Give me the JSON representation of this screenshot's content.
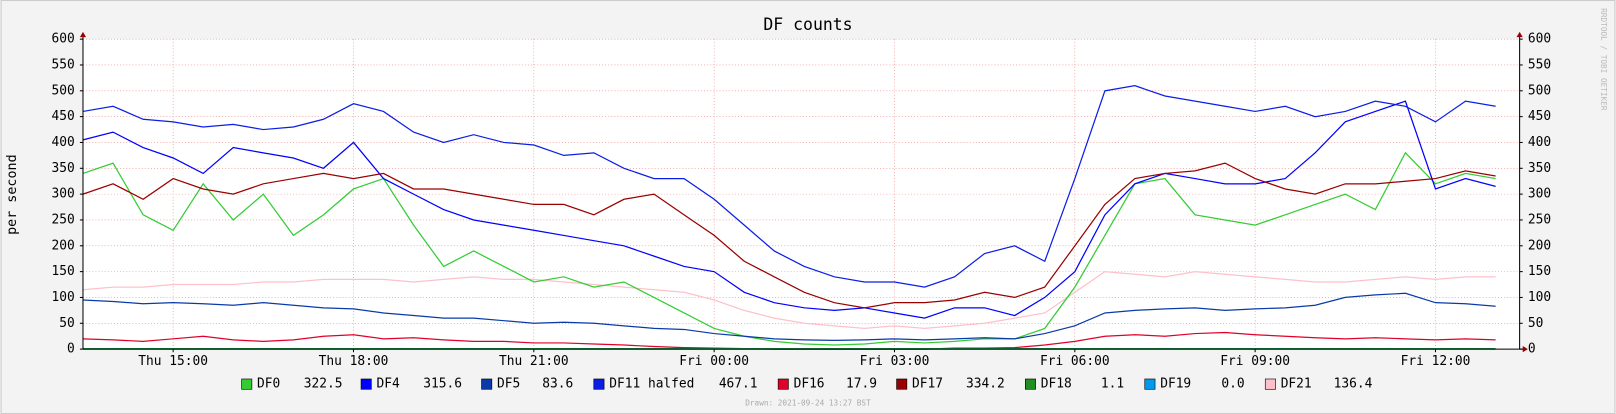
{
  "chart_data": {
    "type": "line",
    "title": "DF counts",
    "y_label": "per second",
    "side_note": "RRDTOOL / TOBI OETIKER",
    "footer": "Drawn: 2021-09-24 13:27 BST",
    "grid": true,
    "legend": "bottom",
    "x": [
      13.5,
      14,
      14.5,
      15,
      15.5,
      16,
      16.5,
      17,
      17.5,
      18,
      18.5,
      19,
      19.5,
      20,
      20.5,
      21,
      21.5,
      22,
      22.5,
      23,
      23.5,
      24,
      24.5,
      25,
      25.5,
      26,
      26.5,
      27,
      27.5,
      28,
      28.5,
      29,
      29.5,
      30,
      30.5,
      31,
      31.5,
      32,
      32.5,
      33,
      33.5,
      34,
      34.5,
      35,
      35.5,
      36,
      36.5,
      37
    ],
    "xlim": [
      13.5,
      37.4
    ],
    "xticks": [
      {
        "value": 15,
        "label": "Thu 15:00"
      },
      {
        "value": 18,
        "label": "Thu 18:00"
      },
      {
        "value": 21,
        "label": "Thu 21:00"
      },
      {
        "value": 24,
        "label": "Fri 00:00"
      },
      {
        "value": 27,
        "label": "Fri 03:00"
      },
      {
        "value": 30,
        "label": "Fri 06:00"
      },
      {
        "value": 33,
        "label": "Fri 09:00"
      },
      {
        "value": 36,
        "label": "Fri 12:00"
      }
    ],
    "ylim": [
      0,
      600
    ],
    "yticks": [
      0,
      50,
      100,
      150,
      200,
      250,
      300,
      350,
      400,
      450,
      500,
      550,
      600
    ],
    "series": [
      {
        "name": "DF0",
        "color": "#33cc33",
        "current": 322.5,
        "values": [
          340,
          360,
          260,
          230,
          320,
          250,
          300,
          220,
          260,
          310,
          330,
          240,
          160,
          190,
          160,
          130,
          140,
          120,
          130,
          100,
          70,
          40,
          25,
          15,
          10,
          8,
          10,
          15,
          12,
          15,
          20,
          20,
          40,
          120,
          220,
          320,
          330,
          260,
          250,
          240,
          260,
          280,
          300,
          270,
          380,
          320,
          340,
          330
        ]
      },
      {
        "name": "DF4",
        "color": "#0000ff",
        "current": 315.6,
        "values": [
          405,
          420,
          390,
          370,
          340,
          390,
          380,
          370,
          350,
          400,
          330,
          300,
          270,
          250,
          240,
          230,
          220,
          210,
          200,
          180,
          160,
          150,
          110,
          90,
          80,
          75,
          80,
          70,
          60,
          80,
          80,
          65,
          100,
          150,
          260,
          320,
          340,
          330,
          320,
          320,
          330,
          380,
          440,
          460,
          480,
          310,
          330,
          315
        ]
      },
      {
        "name": "DF5",
        "color": "#0a3aa8",
        "current": 83.6,
        "values": [
          95,
          92,
          88,
          90,
          88,
          85,
          90,
          85,
          80,
          78,
          70,
          65,
          60,
          60,
          55,
          50,
          52,
          50,
          45,
          40,
          38,
          30,
          25,
          20,
          18,
          17,
          18,
          20,
          18,
          20,
          22,
          20,
          30,
          45,
          70,
          75,
          78,
          80,
          75,
          78,
          80,
          85,
          100,
          105,
          108,
          90,
          88,
          83
        ]
      },
      {
        "name": "DF11 halfed",
        "color": "#0a1ee6",
        "current": 467.1,
        "values": [
          460,
          470,
          445,
          440,
          430,
          435,
          425,
          430,
          445,
          475,
          460,
          420,
          400,
          415,
          400,
          395,
          375,
          380,
          350,
          330,
          330,
          290,
          240,
          190,
          160,
          140,
          130,
          130,
          120,
          140,
          185,
          200,
          170,
          330,
          500,
          510,
          490,
          480,
          470,
          460,
          470,
          450,
          460,
          480,
          470,
          440,
          480,
          470
        ]
      },
      {
        "name": "DF16",
        "color": "#e0002a",
        "current": 17.9,
        "values": [
          20,
          18,
          15,
          20,
          25,
          18,
          15,
          18,
          25,
          28,
          20,
          22,
          18,
          15,
          15,
          12,
          12,
          10,
          8,
          5,
          3,
          2,
          1,
          0,
          0,
          0,
          0,
          0,
          0,
          2,
          2,
          3,
          8,
          15,
          25,
          28,
          25,
          30,
          32,
          28,
          25,
          22,
          20,
          22,
          20,
          18,
          20,
          18
        ]
      },
      {
        "name": "DF17",
        "color": "#990000",
        "current": 334.2,
        "values": [
          300,
          320,
          290,
          330,
          310,
          300,
          320,
          330,
          340,
          330,
          340,
          310,
          310,
          300,
          290,
          280,
          280,
          260,
          290,
          300,
          260,
          220,
          170,
          140,
          110,
          90,
          80,
          90,
          90,
          95,
          110,
          100,
          120,
          200,
          280,
          330,
          340,
          345,
          360,
          330,
          310,
          300,
          320,
          320,
          325,
          330,
          345,
          335
        ]
      },
      {
        "name": "DF18",
        "color": "#1f8f1f",
        "current": 1.1,
        "values": [
          1,
          1,
          1,
          1,
          1,
          1,
          1,
          1,
          1,
          1,
          1,
          1,
          1,
          1,
          1,
          1,
          1,
          1,
          1,
          1,
          1,
          1,
          1,
          1,
          1,
          1,
          1,
          1,
          1,
          1,
          1,
          1,
          1,
          1,
          1,
          1,
          1,
          1,
          1,
          1,
          1,
          1,
          1,
          1,
          1,
          1,
          1,
          1
        ]
      },
      {
        "name": "DF19",
        "color": "#0099ee",
        "current": 0,
        "current_label": "0.0",
        "values": [
          0,
          0,
          0,
          0,
          0,
          0,
          0,
          0,
          0,
          0,
          0,
          0,
          0,
          0,
          0,
          0,
          0,
          0,
          0,
          0,
          0,
          0,
          0,
          0,
          0,
          0,
          0,
          0,
          0,
          0,
          0,
          0,
          0,
          0,
          0,
          0,
          0,
          0,
          0,
          0,
          0,
          0,
          0,
          0,
          0,
          0,
          0,
          0
        ]
      },
      {
        "name": "DF21",
        "color": "#ffc0cb",
        "current": 136.4,
        "values": [
          115,
          120,
          120,
          125,
          125,
          125,
          130,
          130,
          135,
          135,
          135,
          130,
          135,
          140,
          135,
          135,
          130,
          125,
          120,
          115,
          110,
          95,
          75,
          60,
          50,
          45,
          40,
          45,
          40,
          45,
          50,
          60,
          70,
          110,
          150,
          145,
          140,
          150,
          145,
          140,
          135,
          130,
          130,
          135,
          140,
          135,
          140,
          140
        ]
      }
    ]
  }
}
